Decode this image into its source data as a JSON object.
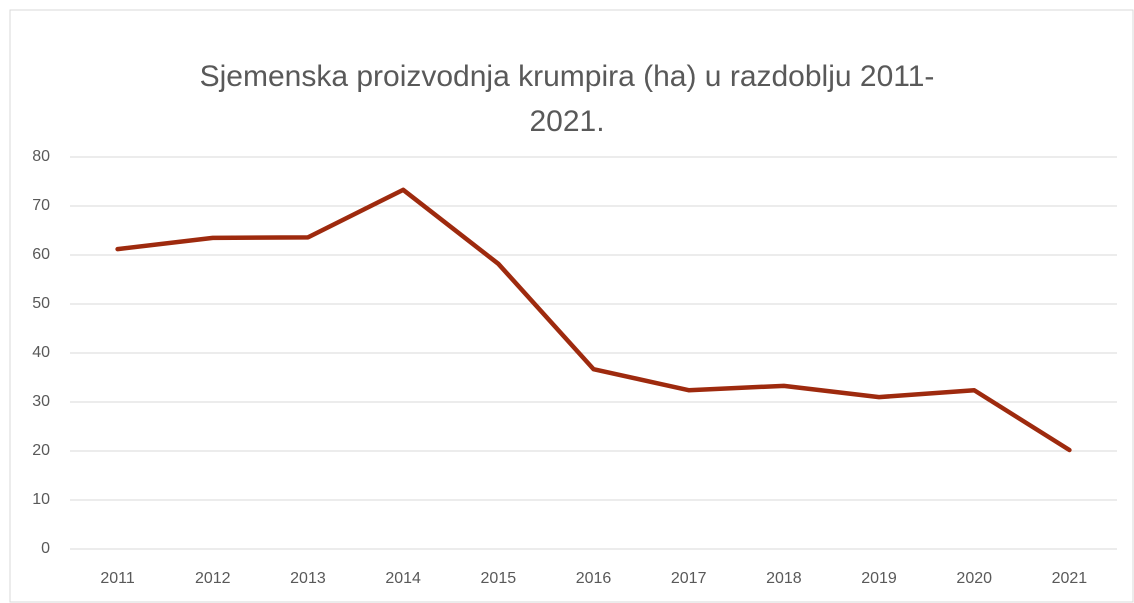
{
  "chart_data": {
    "type": "line",
    "title": "Sjemenska proizvodnja krumpira (ha) u razdoblju 2011-2021.",
    "categories": [
      "2011",
      "2012",
      "2013",
      "2014",
      "2015",
      "2016",
      "2017",
      "2018",
      "2019",
      "2020",
      "2021"
    ],
    "series": [
      {
        "name": "Sjemenska proizvodnja krumpira (ha)",
        "color": "#9e2a0e",
        "values": [
          61.2,
          63.5,
          63.6,
          73.3,
          58.2,
          36.7,
          32.4,
          33.3,
          31.0,
          32.4,
          20.2
        ]
      }
    ],
    "ylim": [
      0,
      80
    ],
    "yticks": [
      0,
      10,
      20,
      30,
      40,
      50,
      60,
      70,
      80
    ],
    "grid": true
  }
}
